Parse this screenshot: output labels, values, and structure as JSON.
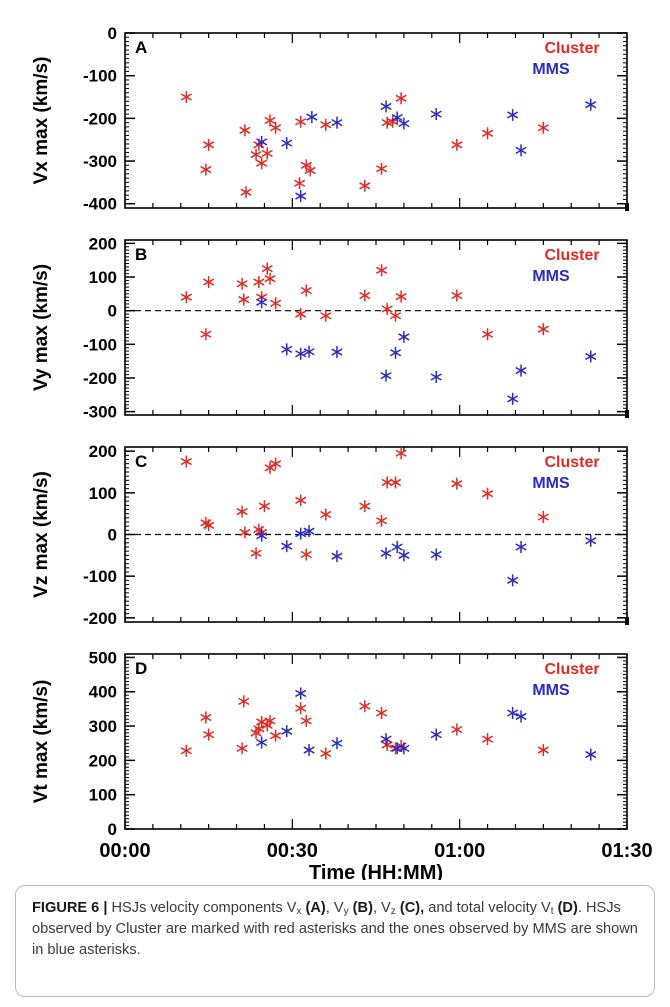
{
  "figure": {
    "xlabel": "Time (HH:MM)",
    "xticks": [
      "00:00",
      "00:30",
      "01:00",
      "01:30"
    ],
    "legend": {
      "cluster": "Cluster",
      "mms": "MMS"
    },
    "colors": {
      "cluster": "#e02b24",
      "mms": "#2a2bc0"
    }
  },
  "caption": {
    "figlabel": "FIGURE 6 |",
    "t1": " HSJs velocity components V",
    "sx": "x",
    "pA": " (A)",
    "t2": ", V",
    "sy": "y",
    "pB": " (B)",
    "t3": ", V",
    "sz": "z",
    "pC": " (C),",
    "t4": " and total velocity V",
    "st": "t",
    "pD": " (D)",
    "t5": ". HSJs observed by Cluster are marked with red asterisks and the ones observed by MMS are shown in blue asterisks."
  },
  "chart_data": [
    {
      "panel": "A",
      "type": "scatter",
      "ylabel": "Vx max (km/s)",
      "xlim": [
        0,
        90
      ],
      "ylim": [
        -410,
        0
      ],
      "yticks": [
        0,
        -100,
        -200,
        -300,
        -400
      ],
      "zero_line": false,
      "series": [
        {
          "name": "Cluster",
          "x": [
            11,
            14.5,
            15,
            21.5,
            21.7,
            23.5,
            24,
            24.5,
            25.5,
            26,
            27,
            31.3,
            31.5,
            32.5,
            33.2,
            36,
            43,
            46,
            47,
            48,
            49.5,
            59.5,
            65,
            75
          ],
          "y": [
            -150,
            -320,
            -262,
            -228,
            -373,
            -285,
            -262,
            -305,
            -282,
            -205,
            -222,
            -352,
            -208,
            -310,
            -322,
            -215,
            -358,
            -318,
            -210,
            -208,
            -153,
            -262,
            -235,
            -222
          ]
        },
        {
          "name": "MMS",
          "x": [
            24.5,
            29,
            31.5,
            33.5,
            38,
            46.8,
            48.8,
            50,
            55.8,
            69.5,
            71,
            83.5
          ],
          "y": [
            -255,
            -258,
            -382,
            -197,
            -210,
            -172,
            -198,
            -212,
            -190,
            -192,
            -275,
            -168
          ]
        }
      ]
    },
    {
      "panel": "B",
      "type": "scatter",
      "ylabel": "Vy max (km/s)",
      "xlim": [
        0,
        90
      ],
      "ylim": [
        -310,
        210
      ],
      "yticks": [
        200,
        100,
        0,
        -100,
        -200,
        -300
      ],
      "zero_line": true,
      "series": [
        {
          "name": "Cluster",
          "x": [
            11,
            14.5,
            15,
            21,
            21.3,
            24,
            24.5,
            25.5,
            26,
            27,
            31.5,
            32.5,
            36,
            43,
            46,
            47,
            48.5,
            49.5,
            59.5,
            65,
            75
          ],
          "y": [
            40,
            -70,
            85,
            80,
            33,
            85,
            40,
            125,
            95,
            22,
            -10,
            60,
            -15,
            45,
            120,
            5,
            -15,
            42,
            45,
            -70,
            -55
          ]
        },
        {
          "name": "MMS",
          "x": [
            24.5,
            29,
            31.5,
            33,
            38,
            46.8,
            48.5,
            50,
            55.8,
            69.5,
            71,
            83.5
          ],
          "y": [
            25,
            -115,
            -128,
            -122,
            -123,
            -193,
            -125,
            -78,
            -197,
            -262,
            -178,
            -136
          ]
        }
      ]
    },
    {
      "panel": "C",
      "type": "scatter",
      "ylabel": "Vz max (km/s)",
      "xlim": [
        0,
        90
      ],
      "ylim": [
        -210,
        210
      ],
      "yticks": [
        200,
        100,
        0,
        -100,
        -200
      ],
      "zero_line": true,
      "series": [
        {
          "name": "Cluster",
          "x": [
            11,
            14.5,
            15,
            21,
            21.5,
            23.5,
            24,
            24.5,
            25,
            26,
            27,
            31.5,
            32.5,
            36,
            43,
            46,
            47,
            48.5,
            49.5,
            59.5,
            65,
            75
          ],
          "y": [
            175,
            28,
            22,
            55,
            5,
            -45,
            12,
            5,
            68,
            160,
            170,
            82,
            -48,
            48,
            68,
            33,
            125,
            125,
            195,
            122,
            98,
            42
          ]
        },
        {
          "name": "MMS",
          "x": [
            24.5,
            29,
            31.5,
            33,
            38,
            46.8,
            48.8,
            50,
            55.8,
            69.5,
            71,
            83.5
          ],
          "y": [
            -3,
            -28,
            2,
            8,
            -52,
            -45,
            -30,
            -50,
            -48,
            -110,
            -30,
            -15
          ]
        }
      ]
    },
    {
      "panel": "D",
      "type": "scatter",
      "ylabel": "Vt max (km/s)",
      "xlim": [
        0,
        90
      ],
      "ylim": [
        0,
        510
      ],
      "yticks": [
        0,
        100,
        200,
        300,
        400,
        500
      ],
      "zero_line": false,
      "series": [
        {
          "name": "Cluster",
          "x": [
            11,
            14.5,
            15,
            21,
            21.3,
            23.5,
            24,
            24.5,
            25.5,
            26,
            27,
            31.5,
            32.5,
            36,
            43,
            46,
            47,
            48.5,
            49.5,
            59.5,
            65,
            75
          ],
          "y": [
            228,
            325,
            275,
            235,
            372,
            280,
            292,
            312,
            302,
            315,
            272,
            352,
            315,
            220,
            358,
            338,
            245,
            235,
            242,
            290,
            262,
            230
          ]
        },
        {
          "name": "MMS",
          "x": [
            24.5,
            29,
            31.5,
            33,
            38,
            46.8,
            48.8,
            50,
            55.8,
            69.5,
            71,
            83.5
          ],
          "y": [
            252,
            285,
            395,
            230,
            250,
            262,
            235,
            235,
            275,
            338,
            328,
            217
          ]
        }
      ]
    }
  ]
}
